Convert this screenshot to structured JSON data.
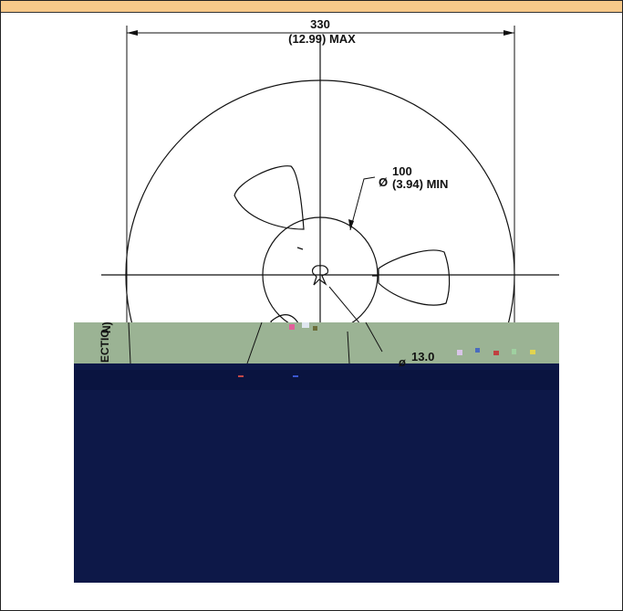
{
  "drawing": {
    "overall_diameter": {
      "value": "330",
      "sub": "(12.99) MAX"
    },
    "hub_diameter": {
      "symbol": "Ø",
      "value": "100",
      "sub": "(3.94) MIN"
    },
    "arbor": {
      "symbol": "ø",
      "value": "13.0"
    },
    "side_label_fragment": "ECTIO",
    "side_label_fragment_2": "N)"
  },
  "colors": {
    "top_bar": "#f7c98a",
    "line": "#111111",
    "corrupt_green": "#9bb394",
    "corrupt_navy": "#0d1848"
  }
}
